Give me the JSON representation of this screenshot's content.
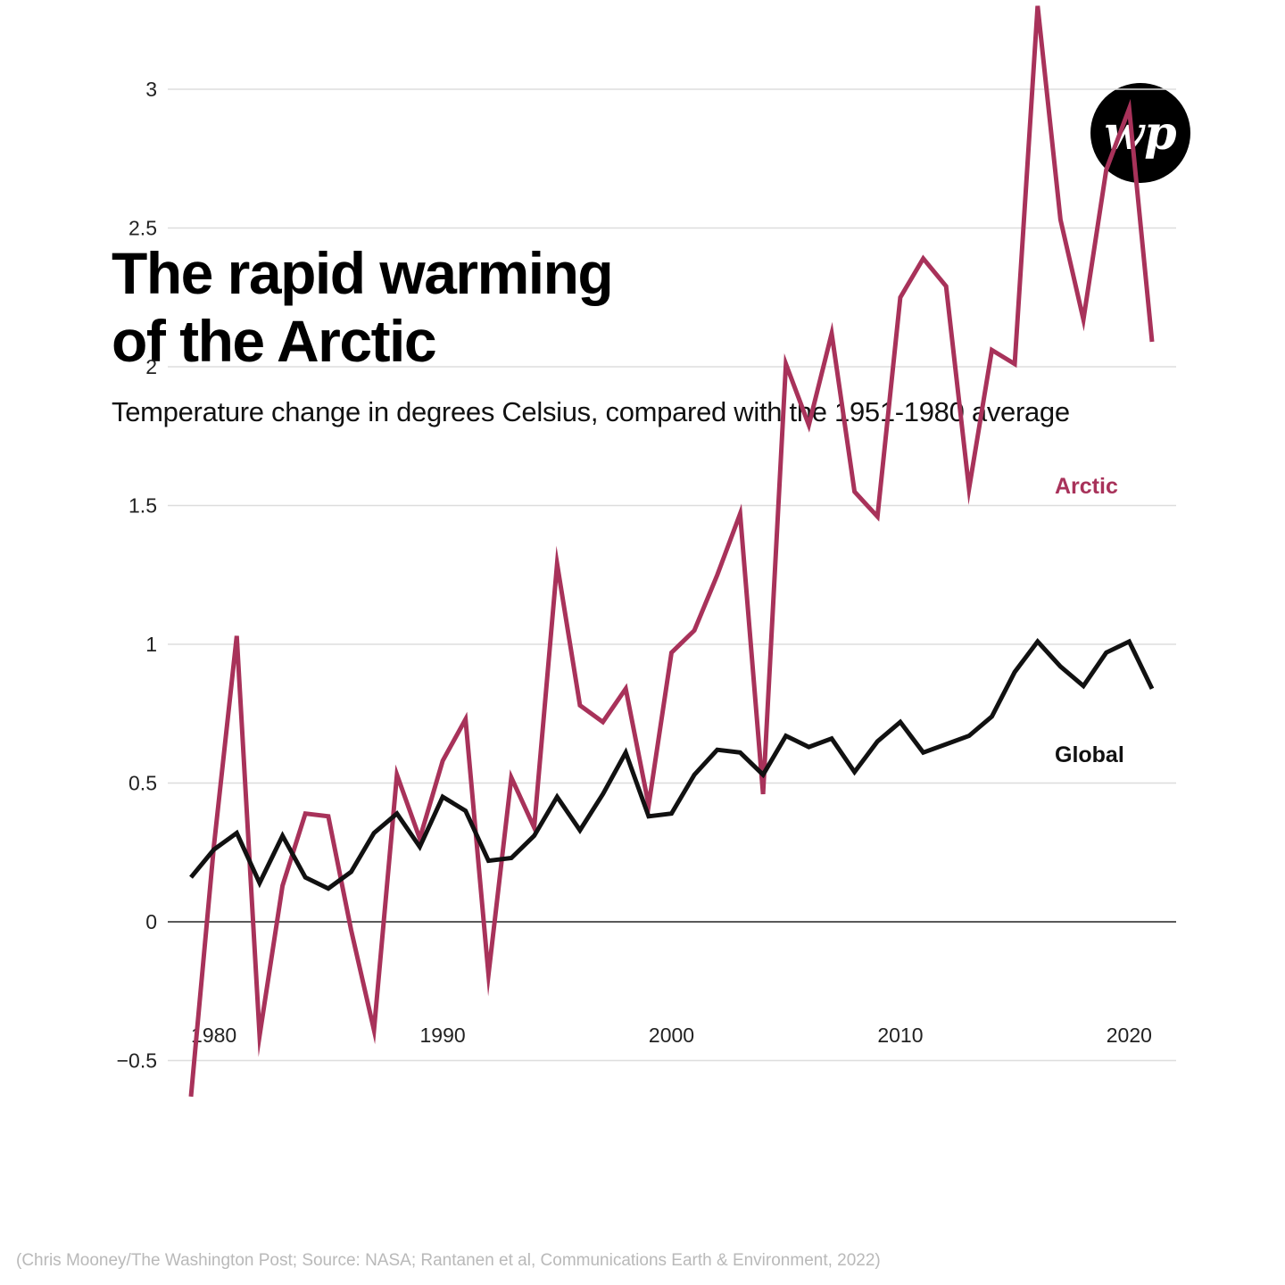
{
  "title_lines": [
    "The rapid warming",
    "of the Arctic"
  ],
  "subtitle": "Temperature change in degrees Celsius, compared with the 1951-1980 average",
  "logo": {
    "icon": "wp-logo",
    "text": "wp"
  },
  "caption": "(Chris Mooney/The Washington Post; Source: NASA; Rantanen et al, Communications Earth & Environment, 2022)",
  "colors": {
    "arctic": "#a8325a",
    "global": "#111111",
    "grid": "#dddddd",
    "zero": "#222222"
  },
  "chart_data": {
    "type": "line",
    "title": "The rapid warming of the Arctic",
    "subtitle": "Temperature change in degrees Celsius, compared with the 1951-1980 average",
    "xlabel": "",
    "ylabel": "",
    "x": [
      1979,
      1980,
      1981,
      1982,
      1983,
      1984,
      1985,
      1986,
      1987,
      1988,
      1989,
      1990,
      1991,
      1992,
      1993,
      1994,
      1995,
      1996,
      1997,
      1998,
      1999,
      2000,
      2001,
      2002,
      2003,
      2004,
      2005,
      2006,
      2007,
      2008,
      2009,
      2010,
      2011,
      2012,
      2013,
      2014,
      2015,
      2016,
      2017,
      2018,
      2019,
      2020,
      2021
    ],
    "xticks": [
      1980,
      1990,
      2000,
      2010,
      2020
    ],
    "xtick_labels": [
      "1980",
      "1990",
      "2000",
      "2010",
      "2020"
    ],
    "xlim": [
      1979,
      2021
    ],
    "yticks": [
      -0.5,
      0,
      0.5,
      1,
      1.5,
      2,
      2.5,
      3
    ],
    "ytick_labels": [
      "−0.5",
      "0",
      "0.5",
      "1",
      "1.5",
      "2",
      "2.5",
      "3"
    ],
    "ylim": [
      -0.65,
      3.3
    ],
    "grid": true,
    "legend": "direct labels at line ends",
    "series": [
      {
        "name": "Arctic",
        "color": "#a8325a",
        "values": [
          -0.63,
          0.27,
          1.03,
          -0.41,
          0.13,
          0.39,
          0.38,
          -0.03,
          -0.39,
          0.53,
          0.3,
          0.58,
          0.73,
          -0.19,
          0.52,
          0.34,
          1.29,
          0.78,
          0.72,
          0.84,
          0.42,
          0.97,
          1.05,
          1.25,
          1.47,
          0.46,
          2.01,
          1.79,
          2.12,
          1.55,
          1.46,
          2.25,
          2.39,
          2.29,
          1.56,
          2.06,
          2.01,
          3.3,
          2.53,
          2.17,
          2.71,
          2.93,
          2.09
        ]
      },
      {
        "name": "Global",
        "color": "#111111",
        "values": [
          0.16,
          0.26,
          0.32,
          0.14,
          0.31,
          0.16,
          0.12,
          0.18,
          0.32,
          0.39,
          0.27,
          0.45,
          0.4,
          0.22,
          0.23,
          0.31,
          0.45,
          0.33,
          0.46,
          0.61,
          0.38,
          0.39,
          0.53,
          0.62,
          0.61,
          0.53,
          0.67,
          0.63,
          0.66,
          0.54,
          0.65,
          0.72,
          0.61,
          0.64,
          0.67,
          0.74,
          0.9,
          1.01,
          0.92,
          0.85,
          0.97,
          1.01,
          0.84
        ]
      }
    ]
  }
}
